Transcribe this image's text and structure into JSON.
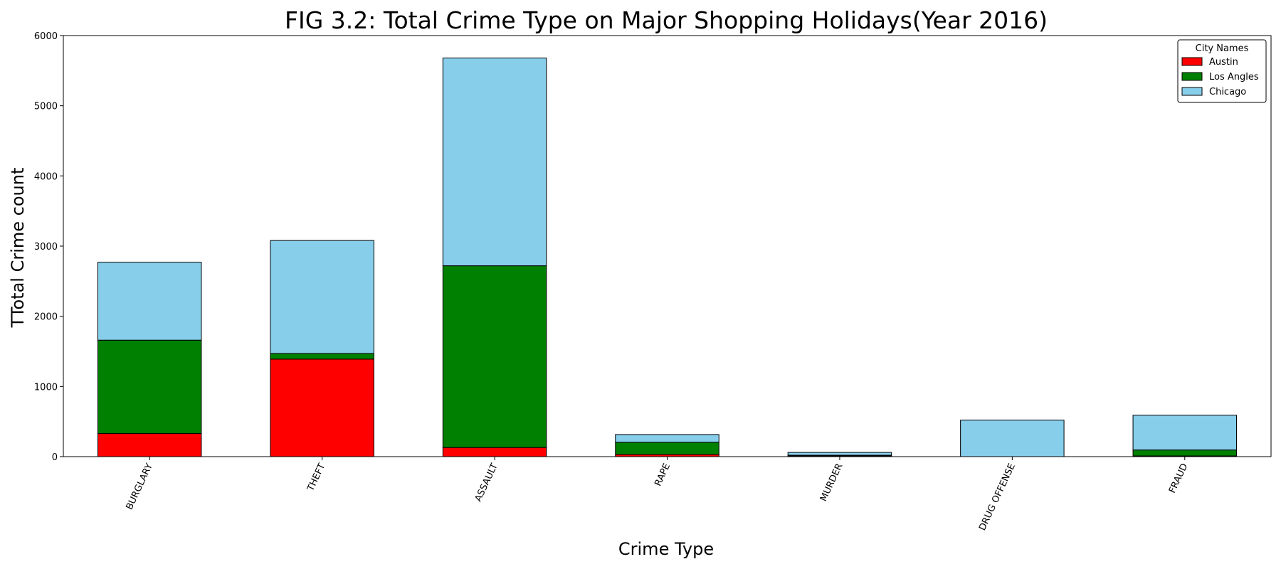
{
  "chart_data": {
    "type": "bar",
    "stacked": true,
    "title": "FIG 3.2: Total Crime Type on Major Shopping Holidays(Year 2016)",
    "xlabel": "Crime Type",
    "ylabel": "TTotal Crime count",
    "ylim": [
      0,
      6000
    ],
    "yticks": [
      0,
      1000,
      2000,
      3000,
      4000,
      5000,
      6000
    ],
    "categories": [
      "BURGLARY",
      "THEFT",
      "ASSAULT",
      "RAPE",
      "MURDER",
      "DRUG OFFENSE",
      "FRAUD"
    ],
    "series": [
      {
        "name": "Austin",
        "color": "#ff0000",
        "values": [
          330,
          1390,
          130,
          30,
          10,
          0,
          10
        ]
      },
      {
        "name": "Los Angles",
        "color": "#008000",
        "values": [
          1330,
          80,
          2590,
          175,
          10,
          0,
          85
        ]
      },
      {
        "name": "Chicago",
        "color": "#87ceeb",
        "values": [
          1110,
          1610,
          2960,
          110,
          40,
          520,
          495
        ]
      }
    ],
    "legend": {
      "title": "City Names",
      "position": "top-right"
    },
    "grid": false
  }
}
